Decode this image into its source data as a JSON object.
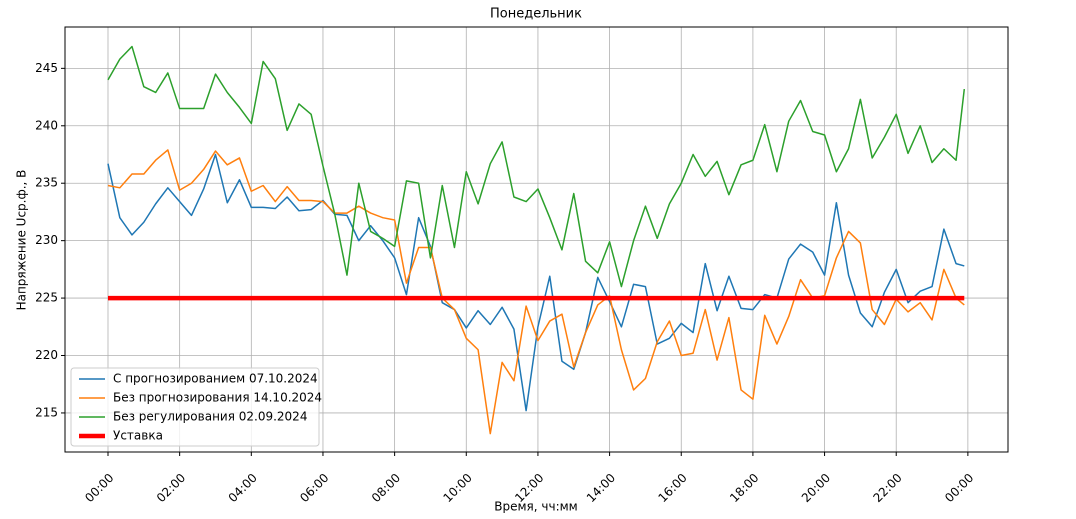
{
  "chart_data": {
    "type": "line",
    "title": "Понедельник",
    "x_label": "Время, чч:мм",
    "y_label": "Напряжение Uср.ф., В",
    "x": [
      0,
      0.33,
      0.67,
      1,
      1.33,
      1.67,
      2,
      2.33,
      2.67,
      3,
      3.33,
      3.67,
      4,
      4.33,
      4.67,
      5,
      5.33,
      5.67,
      6,
      6.33,
      6.67,
      7,
      7.33,
      7.67,
      8,
      8.33,
      8.67,
      9,
      9.33,
      9.67,
      10,
      10.33,
      10.67,
      11,
      11.33,
      11.67,
      12,
      12.33,
      12.67,
      13,
      13.33,
      13.67,
      14,
      14.33,
      14.67,
      15,
      15.33,
      15.67,
      16,
      16.33,
      16.67,
      17,
      17.33,
      17.67,
      18,
      18.33,
      18.67,
      19,
      19.33,
      19.67,
      20,
      20.33,
      20.67,
      21,
      21.33,
      21.67,
      22,
      22.33,
      22.67,
      23,
      23.33,
      23.67,
      23.9
    ],
    "series": [
      {
        "name": "С прогнозированием 07.10.2024",
        "color": "#1f77b4",
        "width": 1.5,
        "values": [
          236.7,
          232,
          230.5,
          231.6,
          233.2,
          234.6,
          233.4,
          232.2,
          234.5,
          237.5,
          233.3,
          235.3,
          232.9,
          232.9,
          232.8,
          233.8,
          232.6,
          232.7,
          233.5,
          232.3,
          232.2,
          230,
          231.3,
          230,
          228.5,
          225.3,
          232,
          229.5,
          224.6,
          224,
          222.4,
          223.9,
          222.7,
          224.2,
          222.3,
          215.2,
          222.5,
          226.9,
          219.5,
          218.8,
          222,
          226.8,
          224.7,
          222.5,
          226.2,
          226,
          221,
          221.5,
          222.8,
          222,
          228,
          223.9,
          226.9,
          224.1,
          224,
          225.3,
          225,
          228.4,
          229.7,
          229,
          227,
          233.3,
          227,
          223.7,
          222.5,
          225.5,
          227.5,
          224.6,
          225.6,
          226,
          231,
          228,
          227.8
        ]
      },
      {
        "name": "Без прогнозирования 14.10.2024",
        "color": "#ff7f0e",
        "width": 1.5,
        "values": [
          234.8,
          234.6,
          235.8,
          235.8,
          237,
          237.9,
          234.4,
          235,
          236.2,
          237.8,
          236.6,
          237.2,
          234.3,
          234.8,
          233.4,
          234.7,
          233.5,
          233.5,
          233.4,
          232.4,
          232.4,
          233,
          232.4,
          232,
          231.8,
          226.3,
          229.4,
          229.4,
          225,
          224,
          221.5,
          220.5,
          213.2,
          219.4,
          217.8,
          224.3,
          221.3,
          223,
          223.6,
          219,
          222,
          224.4,
          225.2,
          220.5,
          217,
          218,
          221.2,
          223,
          220,
          220.2,
          224,
          219.6,
          223.3,
          217,
          216.2,
          223.5,
          221,
          223.4,
          226.6,
          225,
          225.2,
          228.5,
          230.8,
          229.8,
          224,
          222.7,
          224.9,
          223.8,
          224.6,
          223.1,
          227.5,
          225,
          224.4
        ]
      },
      {
        "name": "Без регулирования 02.09.2024",
        "color": "#2ca02c",
        "width": 1.5,
        "values": [
          244,
          245.8,
          246.9,
          243.4,
          242.9,
          244.6,
          241.5,
          241.5,
          241.5,
          244.5,
          242.9,
          241.6,
          240.2,
          245.6,
          244.1,
          239.6,
          241.9,
          241,
          236.5,
          232.3,
          227,
          235,
          230.8,
          230.2,
          229.5,
          235.2,
          235,
          228.5,
          234.8,
          229.4,
          236,
          233.2,
          236.7,
          238.6,
          233.8,
          233.4,
          234.5,
          232,
          229.2,
          234.1,
          228.2,
          227.2,
          229.9,
          226,
          230,
          233,
          230.2,
          233.2,
          235,
          237.5,
          235.6,
          236.9,
          234,
          236.6,
          237,
          240.1,
          236,
          240.4,
          242.2,
          239.5,
          239.2,
          236,
          238,
          242.3,
          237.2,
          239,
          241,
          237.6,
          240,
          236.8,
          238,
          237,
          243.2
        ]
      },
      {
        "name": "Уставка",
        "color": "#ff0000",
        "width": 4.5,
        "values": [
          225,
          225,
          225,
          225,
          225,
          225,
          225,
          225,
          225,
          225,
          225,
          225,
          225,
          225,
          225,
          225,
          225,
          225,
          225,
          225,
          225,
          225,
          225,
          225,
          225,
          225,
          225,
          225,
          225,
          225,
          225,
          225,
          225,
          225,
          225,
          225,
          225,
          225,
          225,
          225,
          225,
          225,
          225,
          225,
          225,
          225,
          225,
          225,
          225,
          225,
          225,
          225,
          225,
          225,
          225,
          225,
          225,
          225,
          225,
          225,
          225,
          225,
          225,
          225,
          225,
          225,
          225,
          225,
          225,
          225,
          225,
          225,
          225
        ]
      }
    ],
    "xlim": [
      -1.2,
      25.12
    ],
    "ylim": [
      211.6,
      248.6
    ],
    "xticks": [
      {
        "value": 0,
        "label": "00:00"
      },
      {
        "value": 2,
        "label": "02:00"
      },
      {
        "value": 4,
        "label": "04:00"
      },
      {
        "value": 6,
        "label": "06:00"
      },
      {
        "value": 8,
        "label": "08:00"
      },
      {
        "value": 10,
        "label": "10:00"
      },
      {
        "value": 12,
        "label": "12:00"
      },
      {
        "value": 14,
        "label": "14:00"
      },
      {
        "value": 16,
        "label": "16:00"
      },
      {
        "value": 18,
        "label": "18:00"
      },
      {
        "value": 20,
        "label": "20:00"
      },
      {
        "value": 22,
        "label": "22:00"
      },
      {
        "value": 24,
        "label": "00:00"
      }
    ],
    "yticks": [
      215,
      220,
      225,
      230,
      235,
      240,
      245
    ],
    "grid": true,
    "legend": "lower left"
  }
}
